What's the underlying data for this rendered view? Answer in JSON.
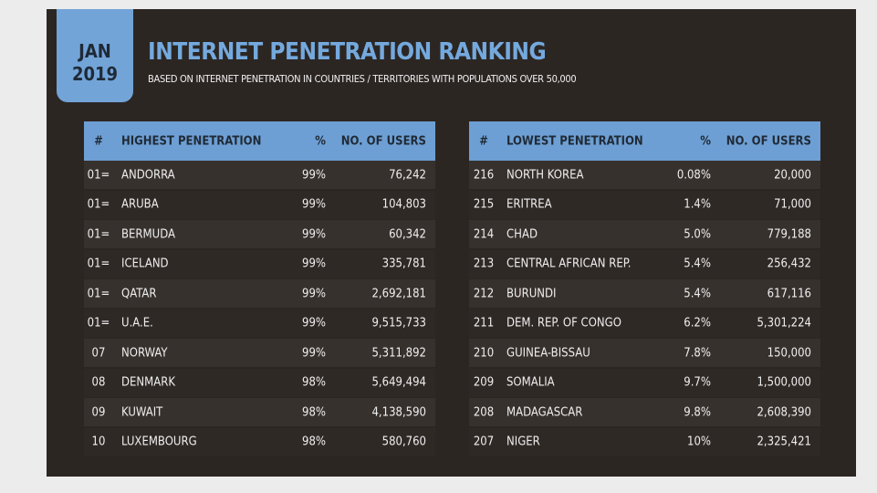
{
  "header": {
    "month": "JAN",
    "year": "2019",
    "title": "INTERNET PENETRATION RANKING",
    "subtitle": "BASED ON INTERNET PENETRATION IN COUNTRIES / TERRITORIES WITH POPULATIONS OVER 50,000"
  },
  "tables": [
    {
      "columns": [
        "#",
        "HIGHEST PENETRATION",
        "%",
        "NO. OF USERS"
      ],
      "rows": [
        [
          "01=",
          "ANDORRA",
          "99%",
          "76,242"
        ],
        [
          "01=",
          "ARUBA",
          "99%",
          "104,803"
        ],
        [
          "01=",
          "BERMUDA",
          "99%",
          "60,342"
        ],
        [
          "01=",
          "ICELAND",
          "99%",
          "335,781"
        ],
        [
          "01=",
          "QATAR",
          "99%",
          "2,692,181"
        ],
        [
          "01=",
          "U.A.E.",
          "99%",
          "9,515,733"
        ],
        [
          "07",
          "NORWAY",
          "99%",
          "5,311,892"
        ],
        [
          "08",
          "DENMARK",
          "98%",
          "5,649,494"
        ],
        [
          "09",
          "KUWAIT",
          "98%",
          "4,138,590"
        ],
        [
          "10",
          "LUXEMBOURG",
          "98%",
          "580,760"
        ]
      ]
    },
    {
      "columns": [
        "#",
        "LOWEST PENETRATION",
        "%",
        "NO. OF USERS"
      ],
      "rows": [
        [
          "216",
          "NORTH KOREA",
          "0.08%",
          "20,000"
        ],
        [
          "215",
          "ERITREA",
          "1.4%",
          "71,000"
        ],
        [
          "214",
          "CHAD",
          "5.0%",
          "779,188"
        ],
        [
          "213",
          "CENTRAL AFRICAN REP.",
          "5.4%",
          "256,432"
        ],
        [
          "212",
          "BURUNDI",
          "5.4%",
          "617,116"
        ],
        [
          "211",
          "DEM. REP. OF CONGO",
          "6.2%",
          "5,301,224"
        ],
        [
          "210",
          "GUINEA-BISSAU",
          "7.8%",
          "150,000"
        ],
        [
          "209",
          "SOMALIA",
          "9.7%",
          "1,500,000"
        ],
        [
          "208",
          "MADAGASCAR",
          "9.8%",
          "2,608,390"
        ],
        [
          "207",
          "NIGER",
          "10%",
          "2,325,421"
        ]
      ]
    }
  ]
}
